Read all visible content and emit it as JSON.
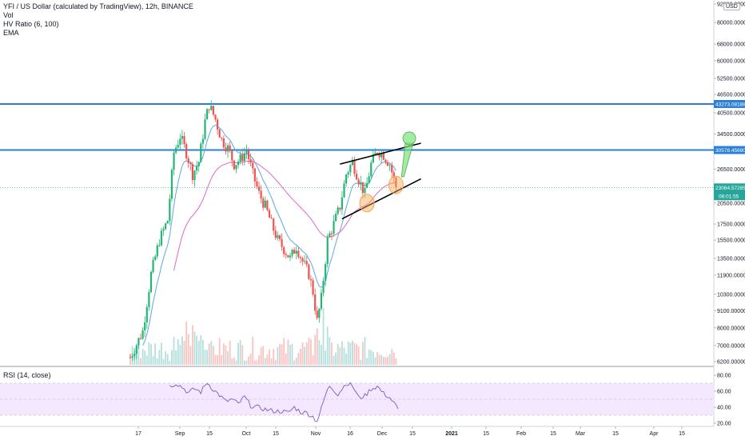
{
  "legend": {
    "title": "YFI / US Dollar (calculated by TradingView), 12h, BINANCE",
    "vol": "Vol",
    "hv": "HV Ratio (6, 100)",
    "ema": "EMA"
  },
  "currency": "USD",
  "rsi_label": "RSI (14, close)",
  "colors": {
    "up": "#26a69a",
    "up_candle": "#22b573",
    "down": "#ef5350",
    "hline": "#2a7fd6",
    "ema_fast": "#5ba8e6",
    "ema_slow": "#e068c8",
    "rsi_line": "#7e57c2",
    "rsi_band": "#f3e8ff",
    "highlight_orange": "#f7a94f",
    "highlight_green": "#7ee07e"
  },
  "chart_data": [
    {
      "type": "candlestick",
      "title": "YFI / US Dollar (calculated by TradingView), 12h, BINANCE",
      "scale": "log",
      "price_axis_ticks": [
        "92000.00000",
        "80000.00000",
        "68000.00000",
        "60000.00000",
        "52500.00000",
        "46500.00000",
        "40500.00000",
        "34500.00000",
        "26500.00000",
        "20500.00000",
        "17500.00000",
        "15500.00000",
        "13500.00000",
        "11900.00000",
        "10300.00000",
        "9100.00000",
        "8000.00000",
        "7000.00000",
        "6200.00000"
      ],
      "time_axis_ticks": [
        "17",
        "Sep",
        "15",
        "Oct",
        "15",
        "Nov",
        "16",
        "Dec",
        "15",
        "2021",
        "15",
        "Feb",
        "15",
        "Mar",
        "15",
        "Apr",
        "15"
      ],
      "horizontal_lines": [
        {
          "value": 43273.08188,
          "label": "43273.08188"
        },
        {
          "value": 30578.4569,
          "label": "30578.45690"
        }
      ],
      "last_price": {
        "value": 23064.57285,
        "label": "23064.57285",
        "countdown": "08:01:55"
      },
      "close_path": [
        [
          0,
          6400
        ],
        [
          6,
          7800
        ],
        [
          10,
          12000
        ],
        [
          14,
          15500
        ],
        [
          18,
          18000
        ],
        [
          21,
          30000
        ],
        [
          24,
          34000
        ],
        [
          27,
          30000
        ],
        [
          30,
          25500
        ],
        [
          33,
          28000
        ],
        [
          36,
          38000
        ],
        [
          38,
          43000
        ],
        [
          41,
          38500
        ],
        [
          44,
          33000
        ],
        [
          47,
          31000
        ],
        [
          50,
          27500
        ],
        [
          53,
          28500
        ],
        [
          56,
          30500
        ],
        [
          59,
          25500
        ],
        [
          62,
          22000
        ],
        [
          65,
          20000
        ],
        [
          68,
          17500
        ],
        [
          71,
          15500
        ],
        [
          74,
          14500
        ],
        [
          77,
          13500
        ],
        [
          80,
          14800
        ],
        [
          83,
          13200
        ],
        [
          86,
          12000
        ],
        [
          88,
          10500
        ],
        [
          90,
          8400
        ],
        [
          92,
          10000
        ],
        [
          95,
          15500
        ],
        [
          98,
          17500
        ],
        [
          101,
          20000
        ],
        [
          104,
          25500
        ],
        [
          107,
          28000
        ],
        [
          110,
          24500
        ],
        [
          113,
          22000
        ],
        [
          116,
          27500
        ],
        [
          119,
          30500
        ],
        [
          122,
          29500
        ],
        [
          125,
          27500
        ],
        [
          128,
          23064
        ]
      ],
      "trendlines": [
        {
          "from": [
            101,
            27500
          ],
          "to": [
            140,
            32200
          ]
        },
        {
          "from": [
            102,
            18200
          ],
          "to": [
            140,
            24600
          ]
        }
      ],
      "highlights": [
        {
          "shape": "circle",
          "at": [
            114,
            20500
          ],
          "color": "orange"
        },
        {
          "shape": "circle",
          "at": [
            128,
            23500
          ],
          "color": "orange"
        },
        {
          "shape": "arrow-up",
          "from": [
            131,
            25000
          ],
          "to": [
            134,
            33000
          ],
          "color": "green"
        }
      ]
    },
    {
      "type": "line",
      "title": "RSI (14, close)",
      "ylim": [
        20,
        80
      ],
      "y_ticks": [
        "80.00",
        "60.00",
        "40.00",
        "20.00"
      ],
      "band": [
        30,
        70
      ],
      "rsi_path": [
        [
          19,
          66
        ],
        [
          22,
          70
        ],
        [
          25,
          65
        ],
        [
          28,
          58
        ],
        [
          31,
          63
        ],
        [
          34,
          59
        ],
        [
          37,
          71
        ],
        [
          40,
          62
        ],
        [
          43,
          55
        ],
        [
          46,
          47
        ],
        [
          49,
          50
        ],
        [
          52,
          44
        ],
        [
          55,
          53
        ],
        [
          58,
          42
        ],
        [
          61,
          40
        ],
        [
          64,
          38
        ],
        [
          67,
          36
        ],
        [
          70,
          35
        ],
        [
          73,
          35
        ],
        [
          76,
          33
        ],
        [
          79,
          40
        ],
        [
          82,
          34
        ],
        [
          85,
          33
        ],
        [
          88,
          28
        ],
        [
          90,
          22
        ],
        [
          92,
          38
        ],
        [
          94,
          55
        ],
        [
          96,
          67
        ],
        [
          98,
          62
        ],
        [
          100,
          56
        ],
        [
          102,
          63
        ],
        [
          104,
          70
        ],
        [
          107,
          67
        ],
        [
          110,
          52
        ],
        [
          113,
          54
        ],
        [
          116,
          63
        ],
        [
          119,
          66
        ],
        [
          122,
          57
        ],
        [
          125,
          52
        ],
        [
          127,
          45
        ],
        [
          129,
          38
        ]
      ]
    }
  ]
}
